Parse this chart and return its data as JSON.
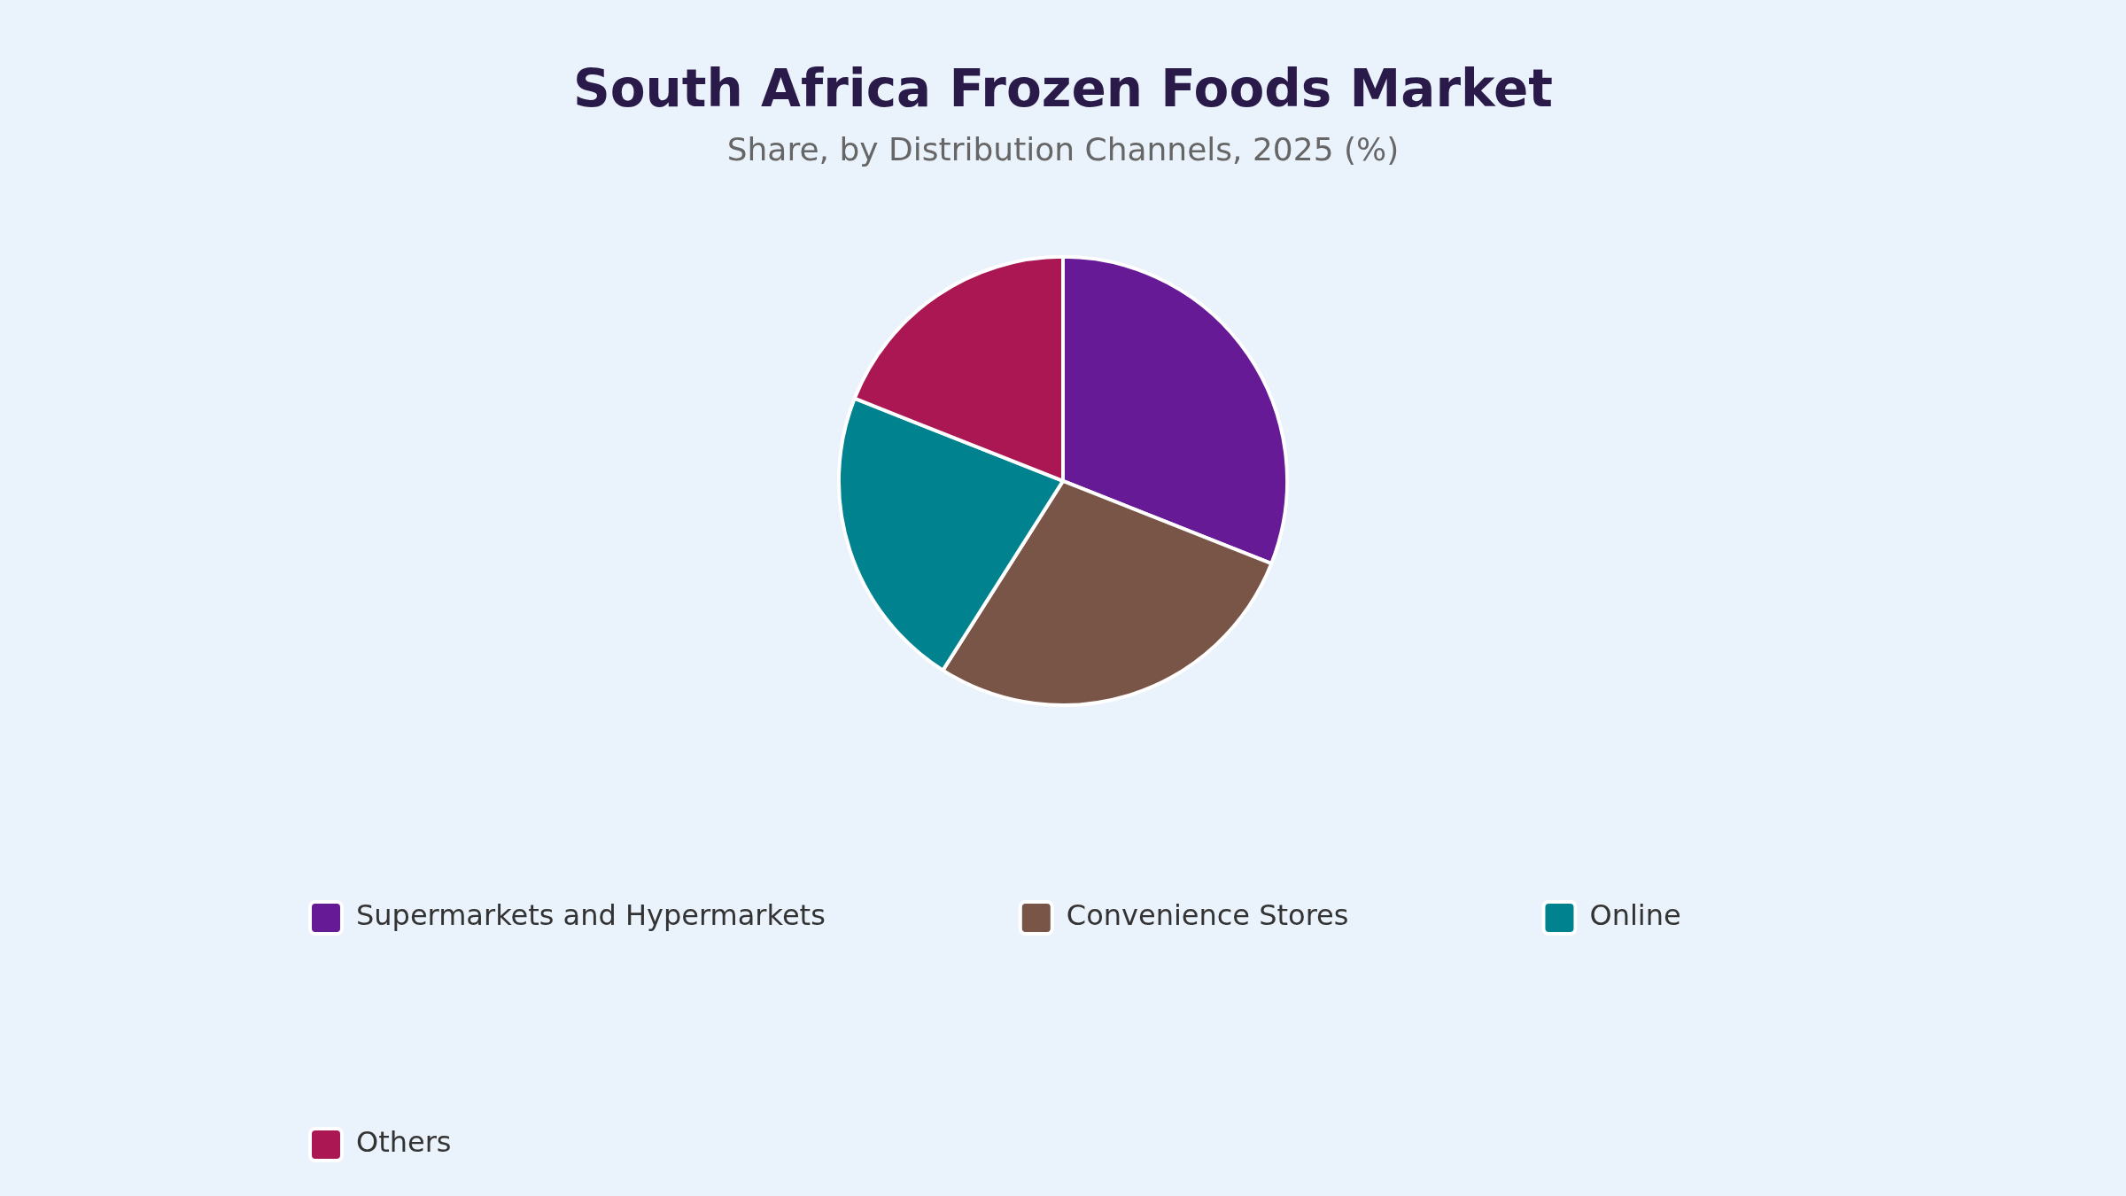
{
  "chart_data": {
    "type": "pie",
    "title": "South Africa Frozen Foods Market",
    "subtitle": "Share, by Distribution Channels, 2025 (%)",
    "categories": [
      "Supermarkets and Hypermarkets",
      "Convenience Stores",
      "Online",
      "Others"
    ],
    "values": [
      31,
      28,
      22,
      19
    ],
    "colors": [
      "#671a96",
      "#795548",
      "#00828f",
      "#ab1752"
    ],
    "legend": "bottom left"
  }
}
